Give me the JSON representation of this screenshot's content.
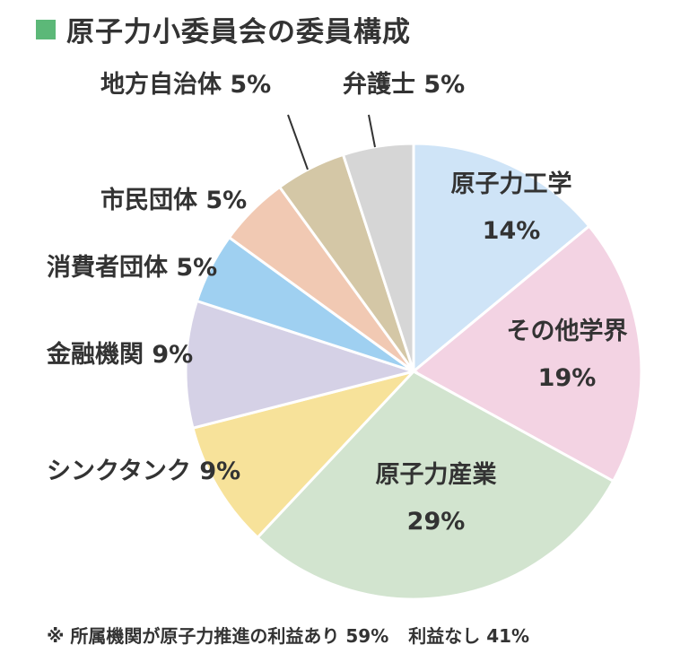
{
  "title": "原子力小委員会の委員構成",
  "colors": {
    "title_marker": "#5cb878"
  },
  "chart_data": {
    "type": "pie",
    "title": "原子力小委員会の委員構成",
    "start": "12 o'clock",
    "direction": "clockwise",
    "slices": [
      {
        "label": "原子力工学",
        "value": 14,
        "value_label": "14%",
        "color": "#cfe4f7",
        "label_placement": "inside"
      },
      {
        "label": "その他学界",
        "value": 19,
        "value_label": "19%",
        "color": "#f3d3e3",
        "label_placement": "inside"
      },
      {
        "label": "原子力産業",
        "value": 29,
        "value_label": "29%",
        "color": "#d2e4cf",
        "label_placement": "inside"
      },
      {
        "label": "シンクタンク",
        "value": 9,
        "value_label": "9%",
        "color": "#f7e29a",
        "label_placement": "outside"
      },
      {
        "label": "金融機関",
        "value": 9,
        "value_label": "9%",
        "color": "#d5d1e6",
        "label_placement": "outside"
      },
      {
        "label": "消費者団体",
        "value": 5,
        "value_label": "5%",
        "color": "#9fd0f1",
        "label_placement": "outside"
      },
      {
        "label": "市民団体",
        "value": 5,
        "value_label": "5%",
        "color": "#f1c9b3",
        "label_placement": "outside"
      },
      {
        "label": "地方自治体",
        "value": 5,
        "value_label": "5%",
        "color": "#d4c7a6",
        "label_placement": "outside"
      },
      {
        "label": "弁護士",
        "value": 5,
        "value_label": "5%",
        "color": "#d6d6d6",
        "label_placement": "outside"
      }
    ]
  },
  "footnote": {
    "part1": "※ 所属機関が原子力推進の利益あり 59%",
    "part2": "利益なし 41%"
  }
}
